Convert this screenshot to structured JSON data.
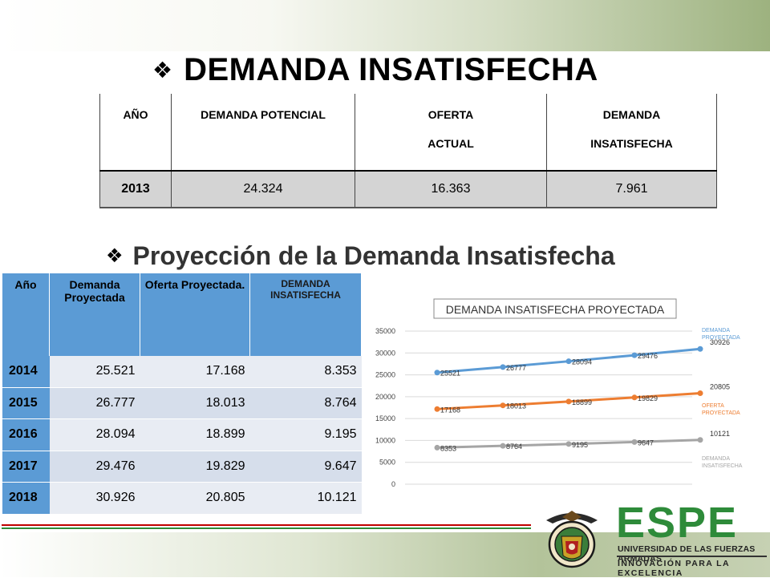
{
  "title": "DEMANDA INSATISFECHA",
  "subtitle": "Proyección de la Demanda Insatisfecha",
  "bullet_glyph": "❖",
  "table1": {
    "headers": {
      "year": "AÑO",
      "potential": "DEMANDA POTENCIAL",
      "offer_l1": "OFERTA",
      "offer_l2": "ACTUAL",
      "unmet_l1": "DEMANDA",
      "unmet_l2": "INSATISFECHA"
    },
    "row": {
      "year": "2013",
      "potential": "24.324",
      "offer": "16.363",
      "unmet": "7.961"
    }
  },
  "table2": {
    "headers": {
      "year": "Año",
      "demand": "Demanda Proyectada",
      "offer": "Oferta Proyectada.",
      "unmet": "DEMANDA INSATISFECHA"
    },
    "rows": [
      {
        "year": "2014",
        "demand": "25.521",
        "offer": "17.168",
        "unmet": "8.353"
      },
      {
        "year": "2015",
        "demand": "26.777",
        "offer": "18.013",
        "unmet": "8.764"
      },
      {
        "year": "2016",
        "demand": "28.094",
        "offer": "18.899",
        "unmet": "9.195"
      },
      {
        "year": "2017",
        "demand": "29.476",
        "offer": "19.829",
        "unmet": "9.647"
      },
      {
        "year": "2018",
        "demand": "30.926",
        "offer": "20.805",
        "unmet": "10.121"
      }
    ]
  },
  "chart_data": {
    "type": "line",
    "title": "DEMANDA INSATISFECHA PROYECTADA",
    "xlabel": "",
    "ylabel": "",
    "ylim": [
      0,
      35000
    ],
    "yticks": [
      "0",
      "5000",
      "10000",
      "15000",
      "20000",
      "25000",
      "30000",
      "35000"
    ],
    "grid": true,
    "legend": "right",
    "series": [
      {
        "name": "DEMANDA PROYECTADA",
        "color": "#5b9bd5",
        "values": [
          25521,
          26777,
          28094,
          29476,
          30926
        ]
      },
      {
        "name": "OFERTA PROYECTADA",
        "color": "#ed7d31",
        "values": [
          17168,
          18013,
          18899,
          19829,
          20805
        ]
      },
      {
        "name": "DEMANDA INSATISFECHA",
        "color": "#a5a5a5",
        "values": [
          8353,
          8764,
          9195,
          9647,
          10121
        ]
      }
    ]
  },
  "logo": {
    "name": "ESPE",
    "university": "UNIVERSIDAD DE LAS FUERZAS ARMADAS",
    "motto": "INNOVACIÓN PARA LA EXCELENCIA"
  },
  "colors": {
    "accent_green": "#2e8b3a",
    "accent_red": "#c00000",
    "table_blue": "#5b9bd5"
  }
}
